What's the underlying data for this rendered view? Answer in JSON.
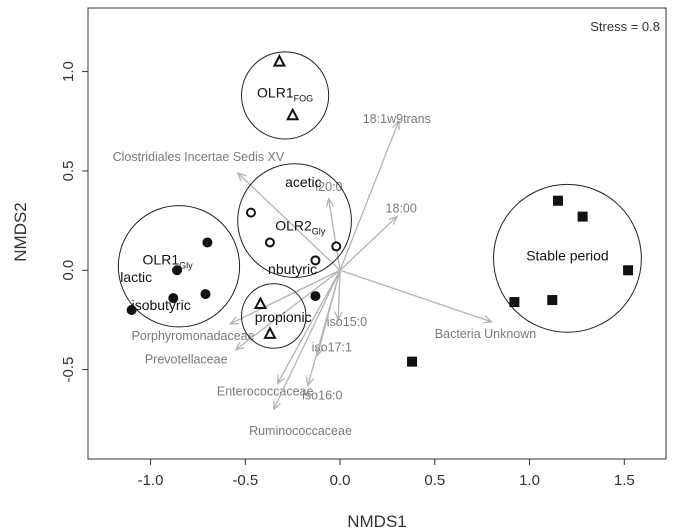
{
  "chart_data": {
    "type": "scatter",
    "xlabel": "NMDS1",
    "ylabel": "NMDS2",
    "annotation": "Stress = 0.8",
    "xlim": [
      -1.33,
      1.72
    ],
    "ylim": [
      -0.95,
      1.32
    ],
    "xticks": [
      {
        "value": -1.0,
        "label": "-1.0"
      },
      {
        "value": -0.5,
        "label": "-0.5"
      },
      {
        "value": 0.0,
        "label": "0.0"
      },
      {
        "value": 0.5,
        "label": "0.5"
      },
      {
        "value": 1.0,
        "label": "1.0"
      },
      {
        "value": 1.5,
        "label": "1.5"
      }
    ],
    "yticks": [
      {
        "value": -0.5,
        "label": "-0.5"
      },
      {
        "value": 0.0,
        "label": "0.0"
      },
      {
        "value": 0.5,
        "label": "0.5"
      },
      {
        "value": 1.0,
        "label": "1.0"
      }
    ],
    "groups": [
      {
        "name": "OLR1",
        "subscript": "FOG",
        "marker": "triangle-open",
        "circle_center": [
          -0.29,
          0.88
        ],
        "circle_radius": 0.23,
        "label_pos": [
          -0.29,
          0.87
        ],
        "points": [
          [
            -0.32,
            1.05
          ],
          [
            -0.25,
            0.78
          ]
        ]
      },
      {
        "name": "OLR2",
        "subscript": "Gly",
        "marker": "circle-open",
        "circle_center": [
          -0.24,
          0.25
        ],
        "circle_radius": 0.3,
        "label_pos": [
          -0.21,
          0.2
        ],
        "points": [
          [
            -0.47,
            0.29
          ],
          [
            -0.37,
            0.14
          ],
          [
            -0.13,
            0.05
          ],
          [
            -0.02,
            0.12
          ]
        ]
      },
      {
        "name": "OLR1",
        "subscript": "Gly",
        "marker": "circle-filled",
        "circle_center": [
          -0.85,
          0.02
        ],
        "circle_radius": 0.32,
        "label_pos": [
          -0.91,
          0.03
        ],
        "points": [
          [
            -0.7,
            0.14
          ],
          [
            -0.86,
            0.0
          ],
          [
            -0.71,
            -0.12
          ],
          [
            -0.88,
            -0.14
          ],
          [
            -1.1,
            -0.2
          ]
        ]
      },
      {
        "name": "",
        "subscript": "",
        "marker": "triangle-open",
        "circle_center": [
          -0.35,
          -0.23
        ],
        "circle_radius": 0.17,
        "label_pos": null,
        "points": [
          [
            -0.42,
            -0.17
          ],
          [
            -0.37,
            -0.32
          ]
        ]
      },
      {
        "name": "",
        "subscript": "",
        "marker": "circle-filled",
        "circle_center": null,
        "circle_radius": null,
        "label_pos": null,
        "points": [
          [
            -0.13,
            -0.13
          ]
        ]
      },
      {
        "name": "Stable period",
        "subscript": "",
        "marker": "square-filled",
        "circle_center": [
          1.2,
          0.06
        ],
        "circle_radius": 0.39,
        "label_pos": [
          1.2,
          0.05
        ],
        "points": [
          [
            1.15,
            0.35
          ],
          [
            1.28,
            0.27
          ],
          [
            1.52,
            0.0
          ],
          [
            0.92,
            -0.16
          ],
          [
            1.12,
            -0.15
          ],
          [
            0.38,
            -0.46
          ]
        ]
      }
    ],
    "vfa_labels": [
      {
        "text": "acetic",
        "pos": [
          -0.29,
          0.42
        ]
      },
      {
        "text": "nbutyric",
        "pos": [
          -0.38,
          -0.02
        ]
      },
      {
        "text": "propionic",
        "pos": [
          -0.45,
          -0.26
        ]
      },
      {
        "text": "lactic",
        "pos": [
          -1.16,
          -0.06
        ]
      },
      {
        "text": "isobutyric",
        "pos": [
          -1.1,
          -0.2
        ]
      }
    ],
    "vectors": [
      {
        "label": "18:1w9trans",
        "end": [
          0.31,
          0.75
        ],
        "label_pos": [
          0.12,
          0.74
        ],
        "anchor": "start"
      },
      {
        "label": "Clostridiales Incertae Sedis XV",
        "end": [
          -0.54,
          0.49
        ],
        "label_pos": [
          -1.2,
          0.55
        ],
        "anchor": "start"
      },
      {
        "label": "i20:0",
        "end": [
          -0.06,
          0.36
        ],
        "label_pos": [
          -0.13,
          0.4
        ],
        "anchor": "start"
      },
      {
        "label": "18:00",
        "end": [
          0.3,
          0.27
        ],
        "label_pos": [
          0.24,
          0.29
        ],
        "anchor": "start"
      },
      {
        "label": "Bacteria Unknown",
        "end": [
          0.8,
          -0.26
        ],
        "label_pos": [
          0.5,
          -0.34
        ],
        "anchor": "start"
      },
      {
        "label": "iso15:0",
        "end": [
          -0.01,
          -0.25
        ],
        "label_pos": [
          -0.07,
          -0.28
        ],
        "anchor": "start"
      },
      {
        "label": "Porphyromonadaceae",
        "end": [
          -0.58,
          -0.27
        ],
        "label_pos": [
          -1.1,
          -0.35
        ],
        "anchor": "start"
      },
      {
        "label": "iso17:1",
        "end": [
          -0.12,
          -0.43
        ],
        "label_pos": [
          -0.15,
          -0.41
        ],
        "anchor": "start"
      },
      {
        "label": "Prevotellaceae",
        "end": [
          -0.55,
          -0.4
        ],
        "label_pos": [
          -1.03,
          -0.47
        ],
        "anchor": "start"
      },
      {
        "label": "Enterococcaceae",
        "end": [
          -0.33,
          -0.57
        ],
        "label_pos": [
          -0.65,
          -0.63
        ],
        "anchor": "start"
      },
      {
        "label": "iso16:0",
        "end": [
          -0.17,
          -0.58
        ],
        "label_pos": [
          -0.2,
          -0.65
        ],
        "anchor": "start"
      },
      {
        "label": "Ruminococcaceae",
        "end": [
          -0.35,
          -0.7
        ],
        "label_pos": [
          -0.48,
          -0.83
        ],
        "anchor": "start"
      }
    ]
  }
}
